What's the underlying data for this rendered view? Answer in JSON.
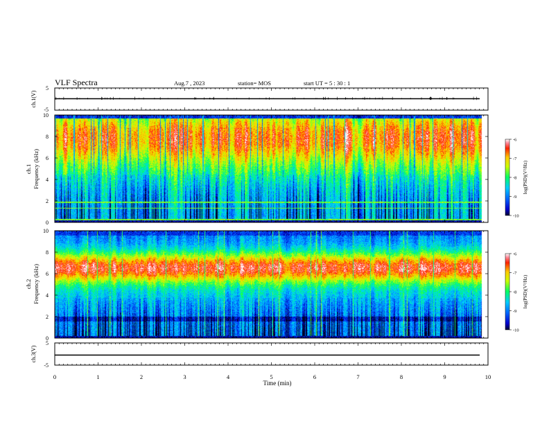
{
  "header": {
    "title": "VLF Spectra",
    "date": "Aug.7  , 2023",
    "station": "station= MOS",
    "start": "start  UT  =   5  : 30 : 1"
  },
  "chart_data": [
    {
      "type": "line",
      "title": "VLF Spectra",
      "ylabel": "ch.1(V)",
      "ylim": [
        -5,
        5
      ],
      "yticks": [
        "5",
        "-5"
      ],
      "x": [
        0,
        1,
        2,
        3,
        4,
        5,
        6,
        7,
        8,
        9,
        9.85
      ],
      "series": [
        {
          "values": [
            0,
            0,
            0,
            0,
            0,
            0,
            0,
            0,
            0,
            0,
            0
          ]
        }
      ],
      "xlim": [
        0,
        10
      ]
    },
    {
      "type": "heatmap",
      "ylabel": "ch.1\nFrequency (kHz)",
      "ylabel_line1": "ch.1",
      "ylabel_line2": "Frequency (kHz)",
      "ylim": [
        0,
        10
      ],
      "yticks": [
        "0",
        "2",
        "4",
        "6",
        "8",
        "10"
      ],
      "xlim": [
        0,
        10
      ],
      "colorbar": {
        "label": "log(PSD)(V²/Hz)",
        "range": [
          -10,
          -6
        ],
        "ticks": [
          "-6",
          "-7",
          "-8",
          "-9",
          "-10"
        ]
      }
    },
    {
      "type": "heatmap",
      "ylabel": "ch.2\nFrequency (kHz)",
      "ylabel_line1": "ch.2",
      "ylabel_line2": "Frequency (kHz)",
      "ylim": [
        0,
        10
      ],
      "yticks": [
        "0",
        "2",
        "4",
        "6",
        "8",
        "10"
      ],
      "xlim": [
        0,
        10
      ],
      "colorbar": {
        "label": "log(PSD)(V²/Hz)",
        "range": [
          -10,
          -6
        ],
        "ticks": [
          "-6",
          "-7",
          "-8",
          "-9",
          "-10"
        ]
      }
    },
    {
      "type": "line",
      "ylabel": "ch.3(V)",
      "ylim": [
        -5,
        5
      ],
      "yticks": [
        "5",
        "-5"
      ],
      "x": [
        0,
        1,
        2,
        3,
        4,
        5,
        6,
        7,
        8,
        9,
        9.85
      ],
      "series": [
        {
          "values": [
            -1,
            -1,
            -1,
            -1,
            -1,
            -1,
            -1,
            -1,
            -1,
            -1,
            -1
          ]
        }
      ],
      "xlim": [
        0,
        10
      ],
      "xlabel": "Time  (min)",
      "xticks": [
        "0",
        "1",
        "2",
        "3",
        "4",
        "5",
        "6",
        "7",
        "8",
        "9",
        "10"
      ]
    }
  ]
}
